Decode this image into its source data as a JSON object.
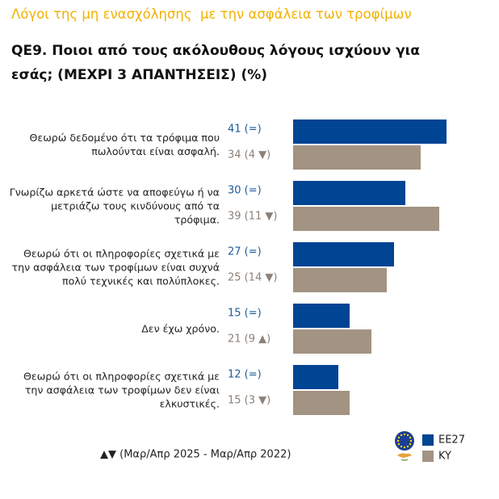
{
  "chart_data": {
    "type": "bar",
    "orientation": "horizontal",
    "title": "Λόγοι της μη ενασχόλησης  με την ασφάλεια των τροφίμων",
    "subtitle": "QE9. Ποιοι από τους ακόλουθους λόγους ισχύουν για εσάς; (ΜΕΧΡΙ 3 ΑΠΑΝΤΗΣΕΙΣ) (%)",
    "categories": [
      "Θεωρώ δεδομένο ότι τα τρόφιμα που πωλούνται είναι ασφαλή.",
      "Γνωρίζω αρκετά ώστε να αποφεύγω ή να μετριάζω τους κινδύνους από τα τρόφιμα.",
      "Θεωρώ ότι οι πληροφορίες σχετικά με την ασφάλεια των τροφίμων είναι συχνά πολύ τεχνικές και πολύπλοκες.",
      "Δεν έχω χρόνο.",
      "Θεωρώ ότι οι πληροφορίες σχετικά με την ασφάλεια των τροφίμων δεν είναι ελκυστικές."
    ],
    "series": [
      {
        "name": "EE27",
        "color": "#004494",
        "label_color": "#1d5c99",
        "values": [
          41,
          30,
          27,
          15,
          12
        ],
        "value_labels": [
          "41 (=)",
          "30 (=)",
          "27 (=)",
          "15 (=)",
          "12 (=)"
        ]
      },
      {
        "name": "KY",
        "color": "#a39382",
        "label_color": "#8c8178",
        "values": [
          34,
          39,
          25,
          21,
          15
        ],
        "value_labels": [
          "34 (4 ▼)",
          "39 (11 ▼)",
          "25 (14 ▼)",
          "21 (9 ▲)",
          "15 (3 ▼)"
        ]
      }
    ],
    "footnote": "▲▼ (Μαρ/Απρ 2025 - Μαρ/Απρ 2022)"
  }
}
